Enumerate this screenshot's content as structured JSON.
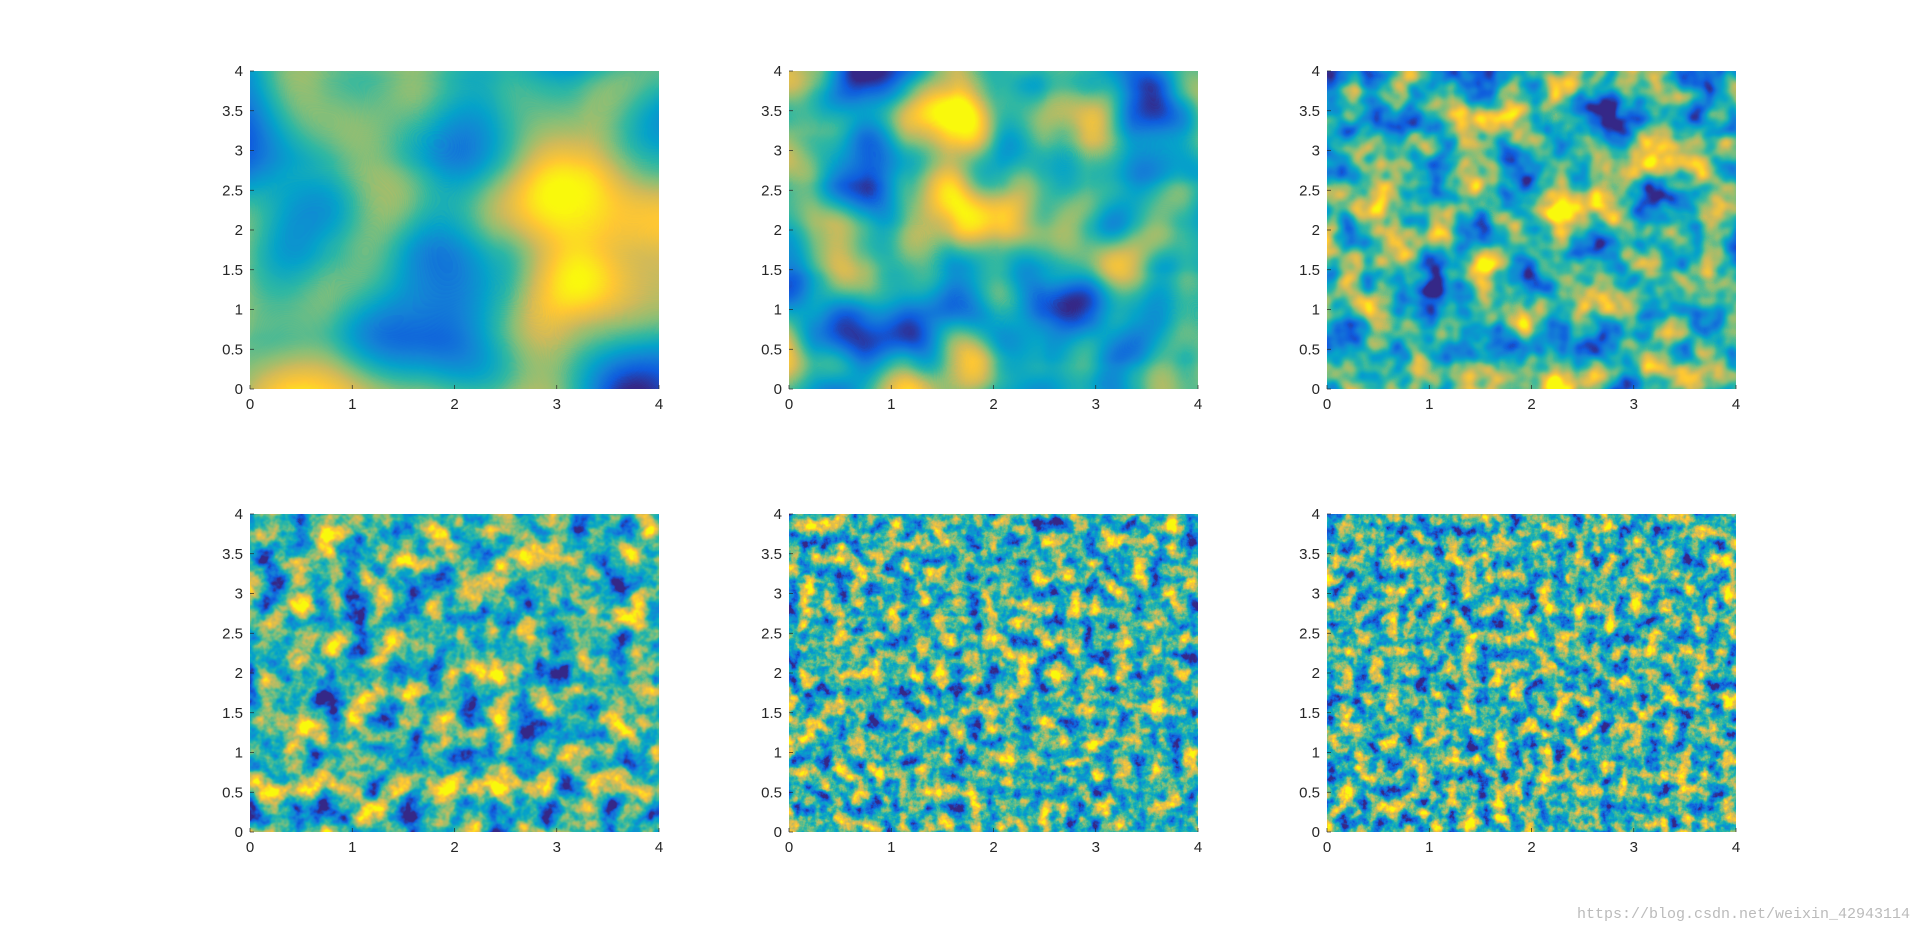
{
  "chart_data": [
    {
      "type": "heatmap",
      "xlim": [
        0,
        4
      ],
      "ylim": [
        0,
        4
      ],
      "xticks": [
        0,
        1,
        2,
        3,
        4
      ],
      "yticks": [
        0,
        0.5,
        1,
        1.5,
        2,
        2.5,
        3,
        3.5,
        4
      ]
    },
    {
      "type": "heatmap",
      "xlim": [
        0,
        4
      ],
      "ylim": [
        0,
        4
      ],
      "xticks": [
        0,
        1,
        2,
        3,
        4
      ],
      "yticks": [
        0,
        0.5,
        1,
        1.5,
        2,
        2.5,
        3,
        3.5,
        4
      ]
    },
    {
      "type": "heatmap",
      "xlim": [
        0,
        4
      ],
      "ylim": [
        0,
        4
      ],
      "xticks": [
        0,
        1,
        2,
        3,
        4
      ],
      "yticks": [
        0,
        0.5,
        1,
        1.5,
        2,
        2.5,
        3,
        3.5,
        4
      ]
    },
    {
      "type": "heatmap",
      "xlim": [
        0,
        4
      ],
      "ylim": [
        0,
        4
      ],
      "xticks": [
        0,
        1,
        2,
        3,
        4
      ],
      "yticks": [
        0,
        0.5,
        1,
        1.5,
        2,
        2.5,
        3,
        3.5,
        4
      ]
    },
    {
      "type": "heatmap",
      "xlim": [
        0,
        4
      ],
      "ylim": [
        0,
        4
      ],
      "xticks": [
        0,
        1,
        2,
        3,
        4
      ],
      "yticks": [
        0,
        0.5,
        1,
        1.5,
        2,
        2.5,
        3,
        3.5,
        4
      ]
    },
    {
      "type": "heatmap",
      "xlim": [
        0,
        4
      ],
      "ylim": [
        0,
        4
      ],
      "xticks": [
        0,
        1,
        2,
        3,
        4
      ],
      "yticks": [
        0,
        0.5,
        1,
        1.5,
        2,
        2.5,
        3,
        3.5,
        4
      ]
    }
  ],
  "watermark": "https://blog.csdn.net/weixin_42943114"
}
